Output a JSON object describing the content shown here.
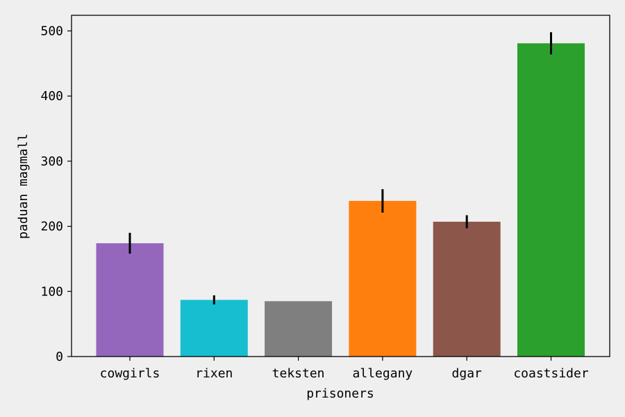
{
  "chart_data": {
    "type": "bar",
    "title": "",
    "xlabel": "prisoners",
    "ylabel": "paduan magmall",
    "categories": [
      "cowgirls",
      "rixen",
      "teksten",
      "allegany",
      "dgar",
      "coastsider"
    ],
    "values": [
      174,
      87,
      85,
      239,
      207,
      481
    ],
    "errors": [
      16,
      7,
      0,
      18,
      10,
      17
    ],
    "colors": [
      "#9467bd",
      "#17becf",
      "#7f7f7f",
      "#ff7f0e",
      "#8c564b",
      "#2ca02c"
    ],
    "ylim": [
      0,
      524
    ],
    "yticks": [
      0,
      100,
      200,
      300,
      400,
      500
    ],
    "grid": false,
    "legend": "none"
  }
}
